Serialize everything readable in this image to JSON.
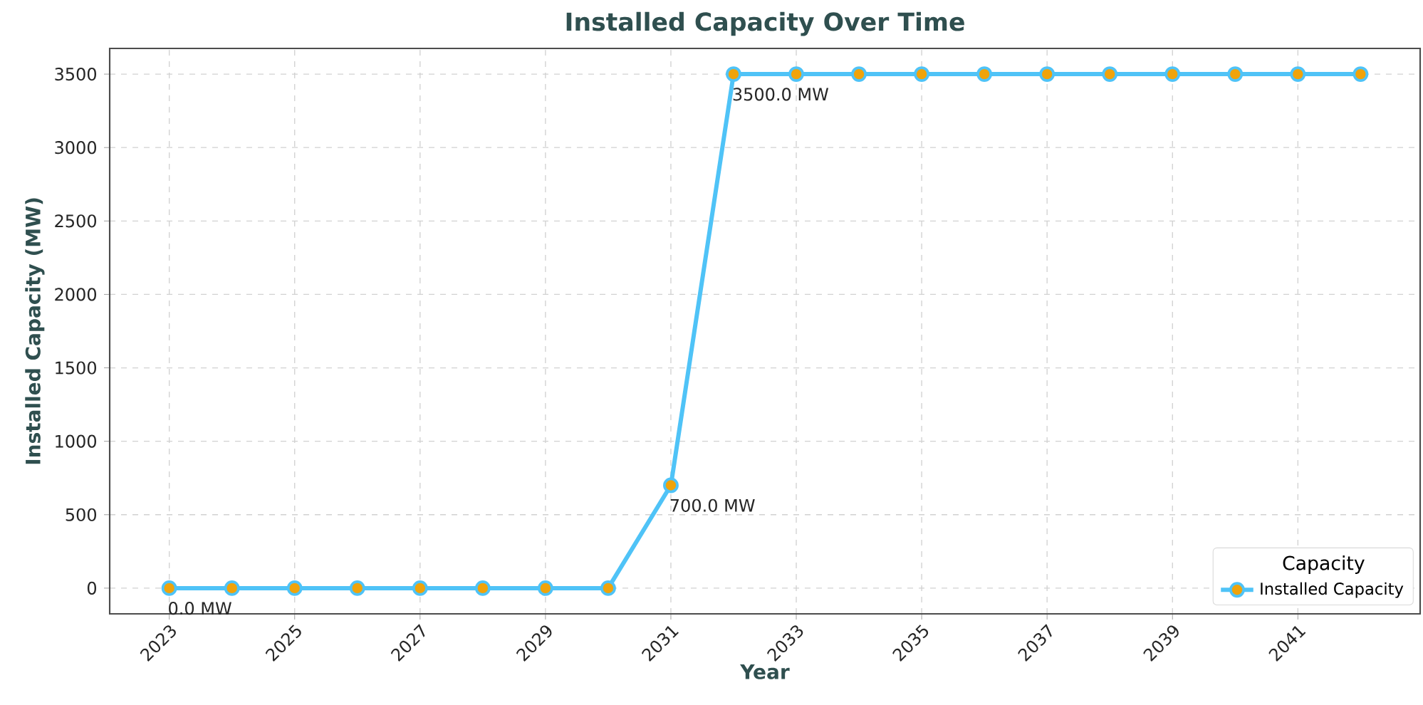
{
  "chart_data": {
    "type": "line",
    "title": "Installed Capacity Over Time",
    "xlabel": "Year",
    "ylabel": "Installed Capacity (MW)",
    "legend_title": "Capacity",
    "x": [
      2023,
      2024,
      2025,
      2026,
      2027,
      2028,
      2029,
      2030,
      2031,
      2032,
      2033,
      2034,
      2035,
      2036,
      2037,
      2038,
      2039,
      2040,
      2041,
      2042
    ],
    "series": [
      {
        "name": "Installed Capacity",
        "color": "#4fc3f7",
        "colors": [
          "#f0a30a",
          "#f0a30a",
          "#f0a30a",
          "#f0a30a",
          "#f0a30a",
          "#f0a30a",
          "#f0a30a",
          "#f0a30a",
          "#f0a30a",
          "#f0a30a",
          "#f0a30a",
          "#f0a30a",
          "#f0a30a",
          "#f0a30a",
          "#f0a30a",
          "#f0a30a",
          "#f0a30a",
          "#f0a30a",
          "#f0a30a",
          "#f0a30a"
        ],
        "values": [
          0,
          0,
          0,
          0,
          0,
          0,
          0,
          0,
          700,
          3500,
          3500,
          3500,
          3500,
          3500,
          3500,
          3500,
          3500,
          3500,
          3500,
          3500
        ]
      }
    ],
    "annotations": [
      {
        "text": "0.0 MW",
        "x": 2023,
        "y": 0
      },
      {
        "text": "700.0 MW",
        "x": 2031,
        "y": 700
      },
      {
        "text": "3500.0 MW",
        "x": 2032,
        "y": 3500
      }
    ],
    "xlim": [
      2022.05,
      2042.95
    ],
    "ylim": [
      -175,
      3675
    ],
    "xticks": [
      2023,
      2025,
      2027,
      2029,
      2031,
      2033,
      2035,
      2037,
      2039,
      2041
    ],
    "yticks": [
      0,
      500,
      1000,
      1500,
      2000,
      2500,
      3000,
      3500
    ],
    "grid": true,
    "legend": "bottom right",
    "marker": "circle",
    "line_style": "solid"
  }
}
